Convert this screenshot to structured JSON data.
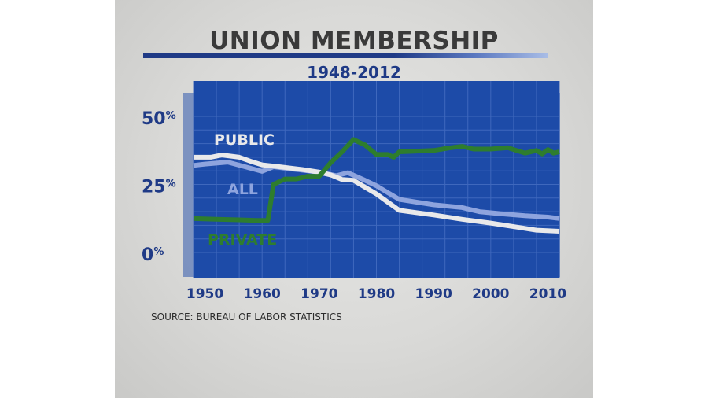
{
  "title": "UNION MEMBERSHIP",
  "subtitle": "1948-2012",
  "source": "SOURCE: BUREAU OF LABOR STATISTICS",
  "colors": {
    "public": "#e9e9ea",
    "all": "#8ea4de",
    "private": "#2e7d2e",
    "axis_text": "#1f3a86",
    "plot_bg": "#1d4ba8"
  },
  "chart_data": {
    "type": "line",
    "title": "UNION MEMBERSHIP",
    "subtitle": "1948-2012",
    "xlabel": "",
    "ylabel": "",
    "xlim": [
      1948,
      2012
    ],
    "ylim": [
      0,
      50
    ],
    "x_ticks": [
      1950,
      1960,
      1970,
      1980,
      1990,
      2000,
      2010
    ],
    "x_tick_labels": [
      "1950",
      "1960",
      "1970",
      "1980",
      "1990",
      "2000",
      "2010"
    ],
    "y_ticks": [
      0,
      25,
      50
    ],
    "y_tick_labels": [
      "0%",
      "25%",
      "50%"
    ],
    "grid": true,
    "series": [
      {
        "name": "PUBLIC",
        "color": "#e9e9ea",
        "points": [
          [
            1948,
            35
          ],
          [
            1951,
            35
          ],
          [
            1953,
            35.8
          ],
          [
            1956,
            35
          ],
          [
            1958,
            33.5
          ],
          [
            1960,
            32.2
          ],
          [
            1963,
            31.5
          ],
          [
            1967,
            30.5
          ],
          [
            1970,
            29.5
          ],
          [
            1972,
            28.5
          ],
          [
            1974,
            26.8
          ],
          [
            1976,
            26.5
          ],
          [
            1978,
            24
          ],
          [
            1980,
            21.5
          ],
          [
            1982,
            18.5
          ],
          [
            1984,
            15.5
          ],
          [
            1990,
            13.8
          ],
          [
            1995,
            12.2
          ],
          [
            2000,
            10.8
          ],
          [
            2005,
            9.2
          ],
          [
            2008,
            8.2
          ],
          [
            2012,
            7.8
          ]
        ]
      },
      {
        "name": "ALL",
        "color": "#8ea4de",
        "points": [
          [
            1948,
            32
          ],
          [
            1950,
            32.5
          ],
          [
            1954,
            33.2
          ],
          [
            1957,
            31.5
          ],
          [
            1960,
            29.8
          ],
          [
            1962,
            31.5
          ],
          [
            1966,
            30.5
          ],
          [
            1970,
            29.5
          ],
          [
            1973,
            28.2
          ],
          [
            1975,
            29.3
          ],
          [
            1978,
            26.5
          ],
          [
            1980,
            24.5
          ],
          [
            1982,
            22
          ],
          [
            1984,
            19.5
          ],
          [
            1990,
            17.5
          ],
          [
            1995,
            16.5
          ],
          [
            1998,
            15
          ],
          [
            2002,
            14.2
          ],
          [
            2006,
            13.5
          ],
          [
            2010,
            13
          ],
          [
            2012,
            12.5
          ]
        ]
      },
      {
        "name": "PRIVATE",
        "color": "#2e7d2e",
        "points": [
          [
            1948,
            12.5
          ],
          [
            1952,
            12.2
          ],
          [
            1956,
            12
          ],
          [
            1959,
            11.8
          ],
          [
            1961,
            11.8
          ],
          [
            1962,
            25
          ],
          [
            1964,
            27
          ],
          [
            1966,
            27
          ],
          [
            1968,
            28
          ],
          [
            1970,
            28
          ],
          [
            1972,
            33
          ],
          [
            1974,
            37
          ],
          [
            1976,
            41.5
          ],
          [
            1978,
            39.5
          ],
          [
            1980,
            36
          ],
          [
            1982,
            36
          ],
          [
            1983,
            35
          ],
          [
            1984,
            37
          ],
          [
            1990,
            37.5
          ],
          [
            1993,
            38.5
          ],
          [
            1995,
            39
          ],
          [
            1997,
            38
          ],
          [
            2000,
            38
          ],
          [
            2003,
            38.5
          ],
          [
            2006,
            36.5
          ],
          [
            2008,
            37.5
          ],
          [
            2009,
            36.2
          ],
          [
            2010,
            37.8
          ],
          [
            2011,
            36.5
          ],
          [
            2012,
            37
          ]
        ]
      }
    ]
  }
}
